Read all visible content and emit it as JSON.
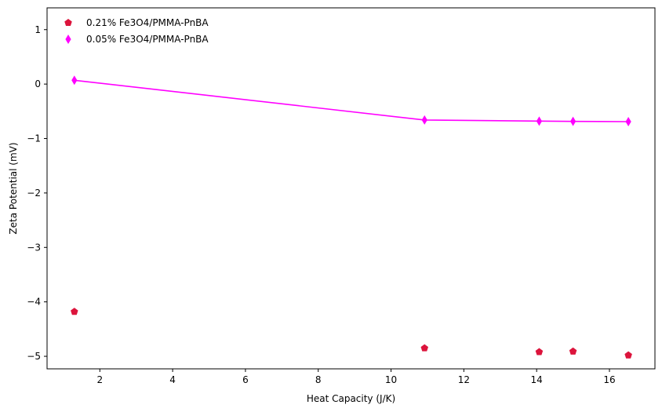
{
  "chart_data": {
    "type": "scatter",
    "title": "",
    "xlabel": "Heat Capacity (J/K)",
    "ylabel": "Zeta Potential (mV)",
    "xlim": [
      0.55,
      17.25
    ],
    "ylim": [
      -5.23,
      1.4
    ],
    "xticks": [
      2,
      4,
      6,
      8,
      10,
      12,
      14,
      16
    ],
    "yticks": [
      1,
      0,
      -1,
      -2,
      -3,
      -4,
      -5
    ],
    "grid": false,
    "legend_position": "top-left",
    "series": [
      {
        "name": "0.21% Fe3O4/PMMA-PnBA",
        "marker": "pentagon",
        "line": false,
        "color": "#dc143c",
        "x": [
          1.3,
          10.92,
          14.07,
          15.0,
          16.52
        ],
        "y": [
          -4.18,
          -4.85,
          -4.92,
          -4.91,
          -4.98
        ]
      },
      {
        "name": "0.05% Fe3O4/PMMA-PnBA",
        "marker": "thin-diamond",
        "line": true,
        "color": "#ff00ff",
        "x": [
          1.3,
          10.92,
          14.07,
          15.0,
          16.52
        ],
        "y": [
          0.07,
          -0.66,
          -0.68,
          -0.685,
          -0.69
        ]
      }
    ]
  }
}
